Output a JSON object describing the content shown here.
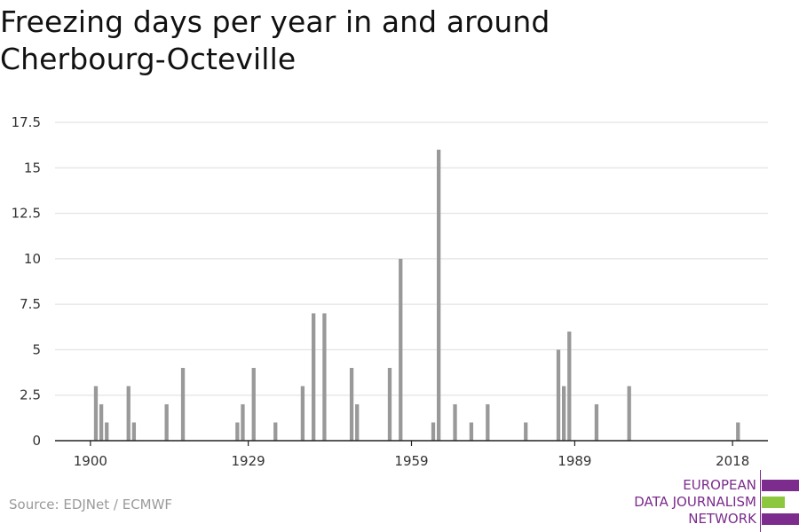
{
  "header": {
    "title_line1": "Freezing days per year in and around",
    "title_line2": "Cherbourg-Octeville"
  },
  "footer": {
    "source": "Source: EDJNet / ECMWF"
  },
  "logo": {
    "line1": "EUROPEAN",
    "line2": "DATA JOURNALISM",
    "line3": "NETWORK",
    "purple": "#7b2c8c",
    "green": "#8dc63f"
  },
  "chart_data": {
    "type": "bar",
    "title": "Freezing days per year in and around Cherbourg-Octeville",
    "xlabel": "",
    "ylabel": "",
    "xlim": [
      1893.5,
      2024.5
    ],
    "ylim": [
      0,
      17.5
    ],
    "yticks": [
      0,
      2.5,
      5,
      7.5,
      10,
      12.5,
      15,
      17.5
    ],
    "ytick_labels": [
      "0",
      "2.5",
      "5",
      "7.5",
      "10",
      "12.5",
      "15",
      "17.5"
    ],
    "xticks": [
      1900,
      1929,
      1959,
      1989,
      2018
    ],
    "xtick_labels": [
      "1900",
      "1929",
      "1959",
      "1989",
      "2018"
    ],
    "grid": true,
    "bar_color": "#999999",
    "x": [
      1901,
      1902,
      1903,
      1907,
      1908,
      1914,
      1917,
      1927,
      1928,
      1930,
      1934,
      1939,
      1941,
      1943,
      1948,
      1949,
      1955,
      1957,
      1963,
      1964,
      1967,
      1970,
      1973,
      1980,
      1986,
      1987,
      1988,
      1993,
      1999,
      2019
    ],
    "values": [
      3,
      2,
      1,
      3,
      1,
      2,
      4,
      1,
      2,
      4,
      1,
      3,
      7,
      7,
      4,
      2,
      4,
      10,
      1,
      16,
      2,
      1,
      2,
      1,
      5,
      3,
      6,
      2,
      3,
      1
    ]
  }
}
